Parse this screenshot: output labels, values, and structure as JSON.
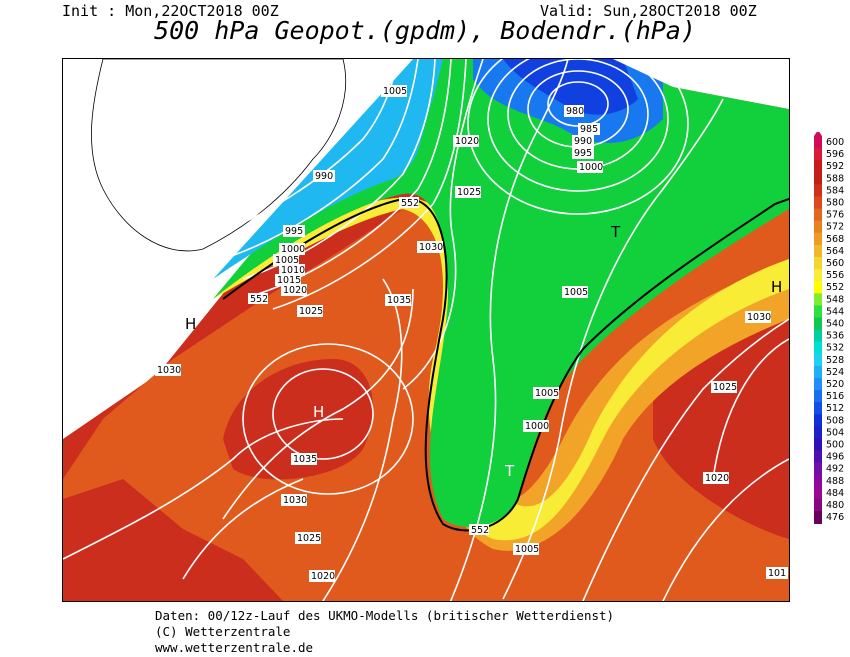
{
  "header": {
    "init": "Init : Mon,22OCT2018 00Z",
    "valid": "Valid: Sun,28OCT2018 00Z",
    "title": "500 hPa Geopot.(gpdm), Bodendr.(hPa)"
  },
  "footer": {
    "line1": "Daten: 00/12z-Lauf des UKMO-Modells (britischer Wetterdienst)",
    "line2": "(C) Wetterzentrale",
    "line3": "www.wetterzentrale.de"
  },
  "legend": {
    "levels": [
      "600",
      "596",
      "592",
      "588",
      "584",
      "580",
      "576",
      "572",
      "568",
      "564",
      "560",
      "556",
      "552",
      "548",
      "544",
      "540",
      "536",
      "532",
      "528",
      "524",
      "520",
      "516",
      "512",
      "508",
      "504",
      "500",
      "496",
      "492",
      "488",
      "484",
      "480",
      "476"
    ],
    "colors": [
      "#d10a5a",
      "#d81b3a",
      "#c81a1a",
      "#c0201a",
      "#d0301c",
      "#db4a1a",
      "#e3661c",
      "#e98220",
      "#ee9c26",
      "#f2b82c",
      "#f6d432",
      "#f8ec36",
      "#ffff00",
      "#80ee30",
      "#30e040",
      "#10c850",
      "#00d0a0",
      "#00e0d8",
      "#20d0f0",
      "#20b0f8",
      "#2090f8",
      "#1870f0",
      "#1050e8",
      "#1030d8",
      "#2020c8",
      "#3010b8",
      "#5010b0",
      "#7010a8",
      "#8a0aa0",
      "#9a0890",
      "#880880",
      "#680060"
    ]
  },
  "map": {
    "pressure_labels": [
      "1005",
      "980",
      "985",
      "990",
      "995",
      "1000",
      "1020",
      "1025",
      "990",
      "995",
      "1000",
      "1005",
      "1010",
      "1015",
      "1020",
      "1025",
      "1030",
      "1035",
      "1030",
      "1035",
      "1030",
      "1025",
      "1020",
      "1005",
      "1030",
      "1025",
      "1020",
      "1005",
      "1000",
      "1005",
      "101"
    ],
    "geopot_labels": [
      "552",
      "552",
      "552"
    ],
    "centers": [
      {
        "label": "H"
      },
      {
        "label": "H"
      },
      {
        "label": "T"
      },
      {
        "label": "T"
      },
      {
        "label": "H"
      }
    ]
  }
}
